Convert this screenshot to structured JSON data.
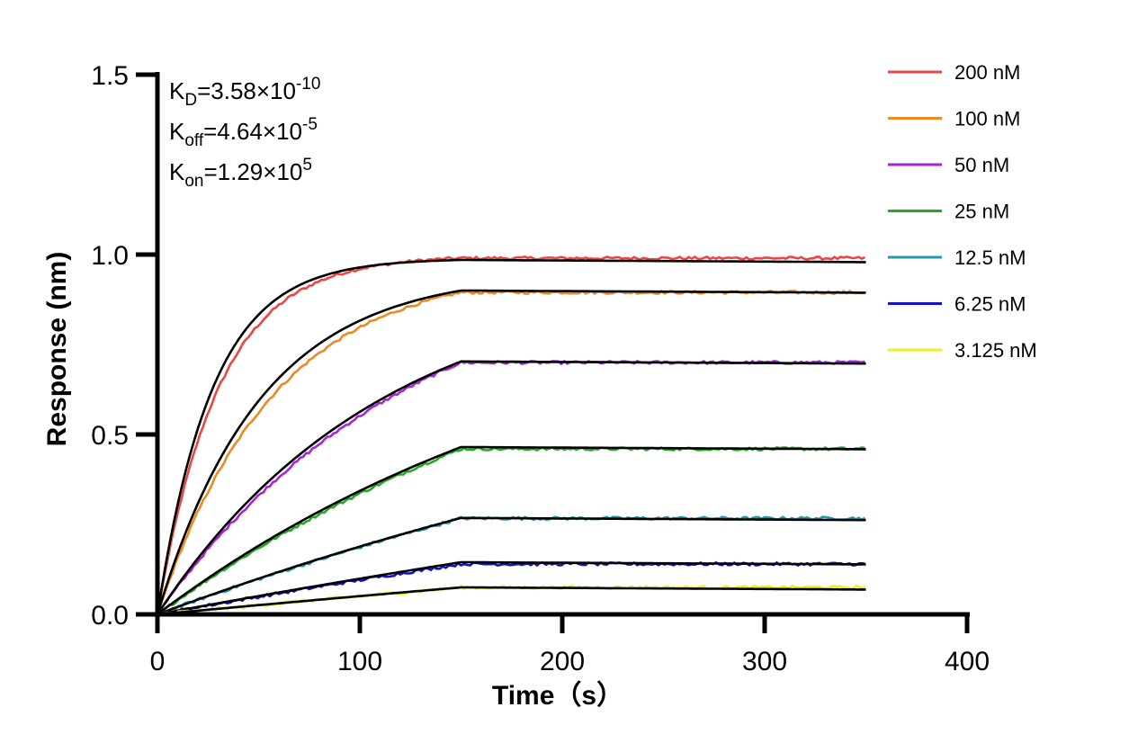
{
  "chart_data": {
    "type": "line",
    "title": "",
    "xlabel": "Time（s）",
    "ylabel": "Response (nm)",
    "xlim": [
      0,
      400
    ],
    "ylim": [
      0,
      1.5
    ],
    "xticks": [
      "0",
      "100",
      "200",
      "300",
      "400"
    ],
    "yticks": [
      "0.0",
      "0.5",
      "1.0",
      "1.5"
    ],
    "grid": false,
    "legend_position": "top-right",
    "phases": {
      "association_end_s": 150,
      "dissociation_end_s": 350
    },
    "annotations": [
      {
        "symbol": "K",
        "subscript": "D",
        "text": "=3.58×10",
        "exponent": "-10"
      },
      {
        "symbol": "K",
        "subscript": "off",
        "text": "=4.64×10",
        "exponent": "-5"
      },
      {
        "symbol": "K",
        "subscript": "on",
        "text": "=1.29×10",
        "exponent": "5"
      }
    ],
    "fit_color": "#000000",
    "series": [
      {
        "name": "200 nM",
        "color": "#ee4444",
        "plateau": 0.99,
        "k_obs": 0.033,
        "fit_plateau": 0.985
      },
      {
        "name": "100 nM",
        "color": "#ee8822",
        "plateau": 0.895,
        "k_obs": 0.0175,
        "fit_plateau": 0.9
      },
      {
        "name": "50 nM",
        "color": "#aa22dd",
        "plateau": 0.7,
        "k_obs": 0.008,
        "fit_plateau": 0.703
      },
      {
        "name": "25 nM",
        "color": "#22aa22",
        "plateau": 0.46,
        "k_obs": 0.004,
        "fit_plateau": 0.465
      },
      {
        "name": "12.5 nM",
        "color": "#2299aa",
        "plateau": 0.267,
        "k_obs": 0.002,
        "fit_plateau": 0.268
      },
      {
        "name": "6.25 nM",
        "color": "#1111cc",
        "plateau": 0.14,
        "k_obs": 0.001,
        "fit_plateau": 0.145
      },
      {
        "name": "3.125 nM",
        "color": "#eeee22",
        "plateau": 0.075,
        "k_obs": 0.0005,
        "fit_plateau": 0.075
      }
    ]
  }
}
